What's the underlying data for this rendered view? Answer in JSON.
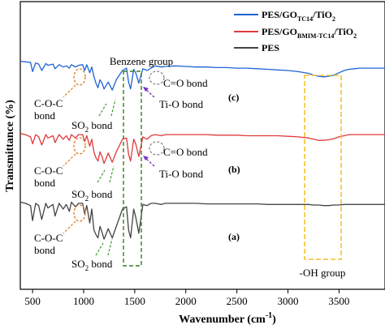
{
  "chart_data": {
    "type": "line",
    "title": "",
    "xlabel": "Wavenumber (cm",
    "xlabel_sup": "-1",
    "xlabel_close": ")",
    "ylabel": "Transmittance (%)",
    "xlim": [
      380,
      3950
    ],
    "xticks": [
      500,
      1000,
      1500,
      2000,
      2500,
      3000,
      3500
    ],
    "grid": false,
    "legend_position": "top-right",
    "series": [
      {
        "name": "PES/GO",
        "name_sub": "TC14",
        "name_tail": "/TiO",
        "name_tail_sub": "2",
        "color": "#1f63d4",
        "panel_label": "(c)",
        "offset": 0.8,
        "x": [
          380,
          430,
          480,
          500,
          530,
          560,
          590,
          630,
          650,
          700,
          720,
          760,
          800,
          830,
          860,
          880,
          920,
          950,
          990,
          1010,
          1030,
          1060,
          1080,
          1100,
          1120,
          1140,
          1160,
          1180,
          1200,
          1240,
          1280,
          1320,
          1380,
          1420,
          1440,
          1460,
          1490,
          1510,
          1540,
          1580,
          1620,
          1660,
          1700,
          1760,
          1800,
          1900,
          2000,
          2100,
          2200,
          2300,
          2400,
          2500,
          2600,
          2700,
          2800,
          2900,
          3000,
          3100,
          3200,
          3250,
          3300,
          3350,
          3400,
          3450,
          3500,
          3550,
          3600,
          3650,
          3700,
          3800,
          3900,
          3950
        ],
        "y": [
          0.98,
          0.97,
          0.96,
          0.8,
          0.95,
          0.93,
          0.82,
          0.94,
          0.91,
          0.93,
          0.85,
          0.92,
          0.88,
          0.9,
          0.86,
          0.92,
          0.88,
          0.91,
          0.92,
          0.82,
          0.92,
          0.78,
          0.88,
          0.72,
          0.6,
          0.52,
          0.66,
          0.6,
          0.5,
          0.62,
          0.48,
          0.66,
          0.82,
          0.86,
          0.62,
          0.5,
          0.84,
          0.78,
          0.6,
          0.85,
          0.82,
          0.86,
          0.9,
          0.88,
          0.89,
          0.9,
          0.89,
          0.88,
          0.88,
          0.87,
          0.87,
          0.86,
          0.86,
          0.85,
          0.84,
          0.83,
          0.82,
          0.8,
          0.77,
          0.74,
          0.72,
          0.71,
          0.72,
          0.74,
          0.78,
          0.82,
          0.84,
          0.85,
          0.86,
          0.86,
          0.86,
          0.86
        ]
      },
      {
        "name": "PES/GO",
        "name_sub": "BMIM-TC14",
        "name_tail": "/TiO",
        "name_tail_sub": "2",
        "color": "#e03a3a",
        "panel_label": "(b)",
        "offset": 0.4,
        "x": [
          380,
          430,
          480,
          500,
          530,
          560,
          590,
          630,
          650,
          700,
          720,
          760,
          800,
          830,
          860,
          880,
          920,
          950,
          990,
          1010,
          1030,
          1060,
          1080,
          1100,
          1120,
          1140,
          1160,
          1180,
          1200,
          1240,
          1280,
          1320,
          1380,
          1420,
          1440,
          1460,
          1490,
          1510,
          1540,
          1580,
          1620,
          1660,
          1700,
          1760,
          1800,
          1900,
          2000,
          2100,
          2200,
          2300,
          2400,
          2500,
          2600,
          2700,
          2800,
          2900,
          3000,
          3100,
          3200,
          3250,
          3300,
          3350,
          3400,
          3450,
          3500,
          3550,
          3600,
          3650,
          3700,
          3800,
          3900,
          3950
        ],
        "y": [
          0.92,
          0.9,
          0.86,
          0.74,
          0.9,
          0.86,
          0.72,
          0.9,
          0.84,
          0.88,
          0.76,
          0.9,
          0.82,
          0.88,
          0.8,
          0.9,
          0.84,
          0.9,
          0.9,
          0.78,
          0.88,
          0.7,
          0.82,
          0.6,
          0.5,
          0.44,
          0.6,
          0.52,
          0.4,
          0.58,
          0.42,
          0.6,
          0.82,
          0.84,
          0.56,
          0.44,
          0.82,
          0.74,
          0.52,
          0.86,
          0.82,
          0.88,
          0.9,
          0.88,
          0.9,
          0.9,
          0.9,
          0.9,
          0.9,
          0.89,
          0.89,
          0.89,
          0.88,
          0.88,
          0.88,
          0.88,
          0.87,
          0.86,
          0.84,
          0.82,
          0.8,
          0.8,
          0.81,
          0.83,
          0.86,
          0.88,
          0.9,
          0.9,
          0.9,
          0.9,
          0.9,
          0.9
        ]
      },
      {
        "name": "PES",
        "name_sub": "",
        "name_tail": "",
        "name_tail_sub": "",
        "color": "#444444",
        "panel_label": "(a)",
        "offset": 0.0,
        "x": [
          380,
          430,
          480,
          500,
          530,
          560,
          590,
          630,
          650,
          700,
          720,
          760,
          800,
          830,
          860,
          880,
          920,
          950,
          990,
          1010,
          1030,
          1060,
          1080,
          1100,
          1120,
          1140,
          1160,
          1180,
          1200,
          1240,
          1280,
          1320,
          1380,
          1420,
          1440,
          1460,
          1490,
          1510,
          1540,
          1580,
          1620,
          1660,
          1700,
          1760,
          1800,
          1900,
          2000,
          2100,
          2200,
          2300,
          2400,
          2500,
          2600,
          2700,
          2800,
          2900,
          3000,
          3100,
          3200,
          3250,
          3300,
          3350,
          3400,
          3450,
          3500,
          3550,
          3600,
          3650,
          3700,
          3800,
          3900,
          3950
        ],
        "y": [
          0.92,
          0.9,
          0.86,
          0.6,
          0.9,
          0.86,
          0.62,
          0.9,
          0.82,
          0.88,
          0.68,
          0.9,
          0.8,
          0.88,
          0.76,
          0.92,
          0.84,
          0.9,
          0.9,
          0.72,
          0.86,
          0.56,
          0.8,
          0.44,
          0.36,
          0.3,
          0.5,
          0.4,
          0.28,
          0.46,
          0.3,
          0.5,
          0.8,
          0.84,
          0.44,
          0.3,
          0.8,
          0.66,
          0.38,
          0.88,
          0.86,
          0.9,
          0.9,
          0.88,
          0.9,
          0.9,
          0.9,
          0.9,
          0.89,
          0.89,
          0.89,
          0.89,
          0.89,
          0.89,
          0.88,
          0.88,
          0.88,
          0.88,
          0.88,
          0.87,
          0.87,
          0.86,
          0.86,
          0.87,
          0.87,
          0.88,
          0.88,
          0.88,
          0.88,
          0.88,
          0.88,
          0.88
        ]
      }
    ],
    "annotations": {
      "benzene": "Benzene group",
      "coc_top_line1": "C-O-C",
      "coc_top_line2": "bond",
      "coc_mid_line1": "C-O-C",
      "coc_mid_line2": "bond",
      "coc_bot_line1": "C-O-C",
      "coc_bot_line2": "bond",
      "so2_top": "SO",
      "so2_top_sub": "2",
      "so2_top_tail": " bond",
      "so2_mid": "SO",
      "so2_mid_sub": "2",
      "so2_mid_tail": " bond",
      "so2_bot": "SO",
      "so2_bot_sub": "2",
      "so2_bot_tail": " bond",
      "co_top": "C=O bond",
      "co_mid": "C=O bond",
      "tio_top": "Ti-O bond",
      "tio_mid": "Ti-O bond",
      "oh": "-OH group"
    },
    "colors": {
      "orange_marker": "#e07b1f",
      "green_marker": "#3a9a2a",
      "gray_marker": "#888888",
      "purple_marker": "#7a30c8",
      "yellow_box": "#f2c230",
      "green_box": "#3a7a20"
    }
  }
}
